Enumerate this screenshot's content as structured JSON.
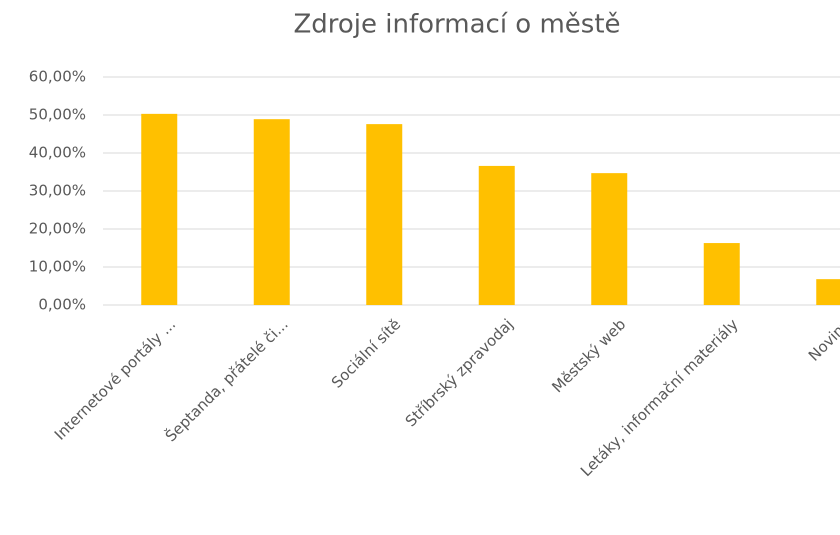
{
  "chart_data": {
    "type": "bar",
    "title": "Zdroje informací o městě",
    "categories": [
      "Internetové portály ...",
      "Šeptanda, přátelé či...",
      "Sociální sítě",
      "Stříbrský zpravodaj",
      "Městský web",
      "Letáky, informační materiály",
      "Noviny"
    ],
    "values": [
      50.3,
      48.9,
      47.6,
      36.6,
      34.7,
      16.3,
      6.8
    ],
    "color": "#ffc000",
    "ylim": [
      0,
      60
    ],
    "yticks": [
      {
        "value": 0,
        "label": "0,00%"
      },
      {
        "value": 10,
        "label": "10,00%"
      },
      {
        "value": 20,
        "label": "20,00%"
      },
      {
        "value": 30,
        "label": "30,00%"
      },
      {
        "value": 40,
        "label": "40,00%"
      },
      {
        "value": 50,
        "label": "50,00%"
      },
      {
        "value": 60,
        "label": "60,00%"
      }
    ],
    "grid": true
  }
}
